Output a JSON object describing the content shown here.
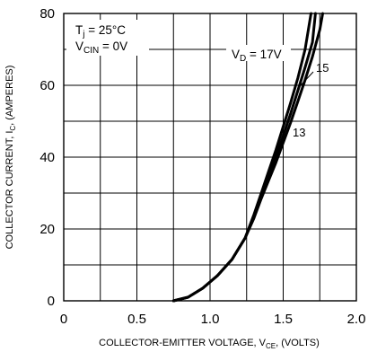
{
  "chart_data": {
    "type": "line",
    "title": "",
    "xlabel": {
      "main": "COLLECTOR-EMITTER VOLTAGE, V",
      "sub": "CE",
      "tail": ", (VOLTS)"
    },
    "ylabel": {
      "main": "COLLECTOR CURRENT, I",
      "sub": "C",
      "tail": ", (AMPERES)"
    },
    "xlim": [
      0,
      2.0
    ],
    "ylim": [
      0,
      80
    ],
    "x_ticks": [
      0,
      0.5,
      1.0,
      1.5,
      2.0
    ],
    "x_tick_labels": [
      "0",
      "0.5",
      "1.0",
      "1.5",
      "2.0"
    ],
    "y_ticks": [
      0,
      20,
      40,
      60,
      80
    ],
    "y_tick_labels": [
      "0",
      "20",
      "40",
      "60",
      "80"
    ],
    "x_grid_step": 0.25,
    "y_grid_step": 10,
    "grid": true,
    "conditions": [
      {
        "main": "T",
        "sub": "j",
        "tail": " = 25°C"
      },
      {
        "main": "V",
        "sub": "CIN",
        "tail": " = 0V"
      }
    ],
    "series": [
      {
        "name": "V_D = 17V",
        "label": {
          "main": "V",
          "sub": "D",
          "tail": " = 17V"
        },
        "x": [
          0.75,
          0.85,
          0.95,
          1.05,
          1.15,
          1.24,
          1.3,
          1.35,
          1.4,
          1.45,
          1.5,
          1.55,
          1.6,
          1.65,
          1.69
        ],
        "y": [
          0,
          1,
          3.5,
          7,
          11.5,
          17.5,
          24,
          30,
          36,
          42,
          48.5,
          55,
          62,
          70,
          80
        ]
      },
      {
        "name": "15",
        "label": {
          "main": "15",
          "sub": "",
          "tail": ""
        },
        "x": [
          0.75,
          0.85,
          0.95,
          1.05,
          1.15,
          1.24,
          1.3,
          1.35,
          1.4,
          1.45,
          1.5,
          1.55,
          1.6,
          1.65,
          1.7,
          1.72
        ],
        "y": [
          0,
          1,
          3.5,
          7,
          11.5,
          17.5,
          23.5,
          29,
          34.5,
          40,
          46,
          52,
          58.5,
          65,
          72,
          80
        ]
      },
      {
        "name": "13",
        "label": {
          "main": "13",
          "sub": "",
          "tail": ""
        },
        "x": [
          0.75,
          0.85,
          0.95,
          1.05,
          1.15,
          1.24,
          1.3,
          1.35,
          1.4,
          1.45,
          1.5,
          1.55,
          1.6,
          1.65,
          1.7,
          1.75,
          1.77
        ],
        "y": [
          0,
          1,
          3.5,
          7,
          11.5,
          17.5,
          23,
          28.5,
          33.5,
          38.5,
          44,
          49.5,
          55.5,
          61.5,
          68,
          75.5,
          80
        ]
      }
    ]
  }
}
